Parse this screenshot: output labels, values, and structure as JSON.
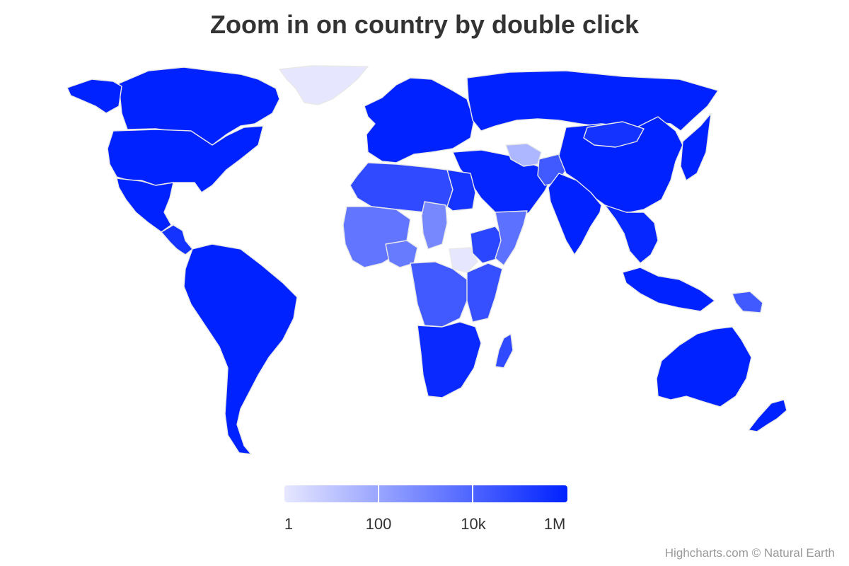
{
  "title": "Zoom in on country by double click",
  "credits": "Highcharts.com © Natural Earth",
  "colors": {
    "min": "#e6e7ff",
    "max": "#0022ff",
    "border": "#e8e8e8",
    "background": "#ffffff"
  },
  "legend": {
    "type": "gradient",
    "scale": "logarithmic",
    "labels": [
      "1",
      "100",
      "10k",
      "1M"
    ],
    "min": 1,
    "max": 1000000
  },
  "chart_data": {
    "type": "choropleth",
    "title": "Zoom in on country by double click",
    "color_axis": {
      "scale": "logarithmic",
      "min": 1,
      "max": 1000000,
      "ticks": [
        "1",
        "100",
        "10k",
        "1M"
      ]
    },
    "regions": [
      {
        "name": "Canada",
        "value": 1000000
      },
      {
        "name": "United States",
        "value": 1000000
      },
      {
        "name": "Alaska",
        "value": 1000000
      },
      {
        "name": "Greenland",
        "value": 1
      },
      {
        "name": "Mexico",
        "value": 1000000
      },
      {
        "name": "Central America",
        "value": 300000
      },
      {
        "name": "South America",
        "value": 1000000
      },
      {
        "name": "Europe",
        "value": 1000000
      },
      {
        "name": "Russia",
        "value": 1000000
      },
      {
        "name": "Middle East",
        "value": 800000
      },
      {
        "name": "Turkmenistan",
        "value": 30
      },
      {
        "name": "Afghanistan",
        "value": 20000
      },
      {
        "name": "China",
        "value": 1000000
      },
      {
        "name": "Mongolia",
        "value": 300000
      },
      {
        "name": "India",
        "value": 1000000
      },
      {
        "name": "Southeast Asia",
        "value": 700000
      },
      {
        "name": "Japan",
        "value": 1000000
      },
      {
        "name": "North Africa",
        "value": 60000
      },
      {
        "name": "Egypt",
        "value": 300000
      },
      {
        "name": "West Africa",
        "value": 3000
      },
      {
        "name": "Chad",
        "value": 800
      },
      {
        "name": "Nigeria",
        "value": 2000
      },
      {
        "name": "South Sudan",
        "value": 1
      },
      {
        "name": "Ethiopia",
        "value": 80000
      },
      {
        "name": "Somalia",
        "value": 4000
      },
      {
        "name": "Central Africa",
        "value": 20000
      },
      {
        "name": "East Africa",
        "value": 40000
      },
      {
        "name": "Southern Africa",
        "value": 600000
      },
      {
        "name": "Madagascar",
        "value": 60000
      },
      {
        "name": "Indonesia",
        "value": 1000000
      },
      {
        "name": "Papua New Guinea",
        "value": 20000
      },
      {
        "name": "Australia",
        "value": 1000000
      },
      {
        "name": "New Zealand",
        "value": 1000000
      }
    ]
  }
}
